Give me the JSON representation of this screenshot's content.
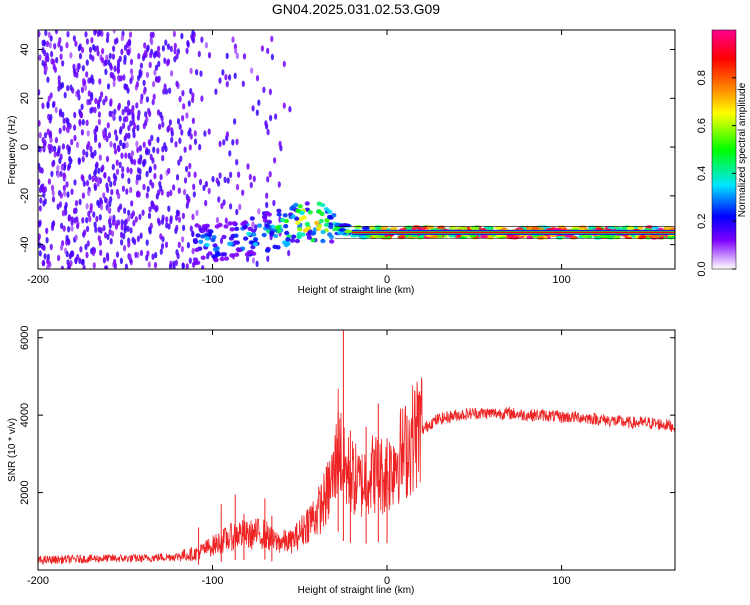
{
  "figure_title": "GN04.2025.031.02.53.G09",
  "chart_data": [
    {
      "type": "heatmap",
      "title": "",
      "xlabel": "Height of straight line (km)",
      "ylabel": "Frequency (Hz)",
      "xlim": [
        -200,
        165
      ],
      "ylim": [
        -50,
        48
      ],
      "xticks": [
        -200,
        -100,
        0,
        100
      ],
      "yticks": [
        -40,
        -20,
        0,
        20,
        40
      ],
      "colorbar": {
        "label": "Normalized spectral amplitude",
        "range": [
          0,
          1
        ],
        "ticks": [
          0.0,
          0.2,
          0.4,
          0.6,
          0.8
        ],
        "tick_labels": [
          "0.0",
          "0.2",
          "0.4",
          "0.6",
          "0.8"
        ],
        "colormap_stops": [
          "#ffffff",
          "#7e00ff",
          "#0000ff",
          "#00e5ff",
          "#00ff00",
          "#ffff00",
          "#ff8c00",
          "#ff0000",
          "#ff0090"
        ]
      },
      "dominant_ridge": {
        "description_points": [
          {
            "x": -110,
            "y": -40,
            "amplitude": 0.3
          },
          {
            "x": -90,
            "y": -38,
            "amplitude": 0.35
          },
          {
            "x": -70,
            "y": -35,
            "amplitude": 0.4
          },
          {
            "x": -55,
            "y": -32,
            "amplitude": 0.5
          },
          {
            "x": -45,
            "y": -30,
            "amplitude": 0.75
          },
          {
            "x": -30,
            "y": -33,
            "amplitude": 0.45
          },
          {
            "x": -15,
            "y": -35,
            "amplitude": 0.6
          },
          {
            "x": 0,
            "y": -35,
            "amplitude": 0.85
          },
          {
            "x": 50,
            "y": -35,
            "amplitude": 0.9
          },
          {
            "x": 100,
            "y": -35,
            "amplitude": 0.9
          },
          {
            "x": 165,
            "y": -35,
            "amplitude": 0.9
          }
        ]
      },
      "noise_region": {
        "x_from": -200,
        "x_to": -55,
        "y_from": -50,
        "y_to": 48
      }
    },
    {
      "type": "line",
      "title": "",
      "xlabel": "Height of straight line (km)",
      "ylabel": "SNR (10 * v/v)",
      "xlim": [
        -200,
        165
      ],
      "ylim": [
        0,
        6200
      ],
      "xticks": [
        -200,
        -100,
        0,
        100
      ],
      "yticks": [
        2000,
        4000,
        6000
      ],
      "series": [
        {
          "color": "#ee2222",
          "x": [
            -200,
            -180,
            -160,
            -140,
            -130,
            -120,
            -110,
            -100,
            -90,
            -85,
            -80,
            -75,
            -70,
            -65,
            -60,
            -55,
            -50,
            -45,
            -40,
            -35,
            -30,
            -28,
            -25,
            -20,
            -15,
            -10,
            -5,
            0,
            5,
            10,
            15,
            20,
            25,
            30,
            35,
            40,
            50,
            60,
            70,
            80,
            90,
            100,
            110,
            120,
            130,
            140,
            150,
            160,
            165
          ],
          "y": [
            250,
            280,
            300,
            300,
            330,
            350,
            400,
            600,
            800,
            900,
            850,
            900,
            900,
            700,
            700,
            700,
            900,
            1200,
            1400,
            1800,
            2400,
            3300,
            2500,
            2300,
            2100,
            2400,
            2400,
            2300,
            2800,
            2900,
            3300,
            3600,
            3800,
            3900,
            3950,
            4000,
            4050,
            4050,
            4050,
            4000,
            4000,
            3950,
            3950,
            3900,
            3850,
            3800,
            3800,
            3750,
            3700
          ],
          "spikes": [
            {
              "x": -108,
              "y": 1100
            },
            {
              "x": -95,
              "y": 1700
            },
            {
              "x": -87,
              "y": 1950
            },
            {
              "x": -82,
              "y": 1450
            },
            {
              "x": -70,
              "y": 1850
            },
            {
              "x": -66,
              "y": 1400
            },
            {
              "x": -28,
              "y": 4100
            },
            {
              "x": -25,
              "y": 6200
            },
            {
              "x": -21,
              "y": 3600
            },
            {
              "x": -12,
              "y": 3700
            },
            {
              "x": -5,
              "y": 4300
            },
            {
              "x": 0,
              "y": 3400
            }
          ]
        }
      ]
    }
  ]
}
